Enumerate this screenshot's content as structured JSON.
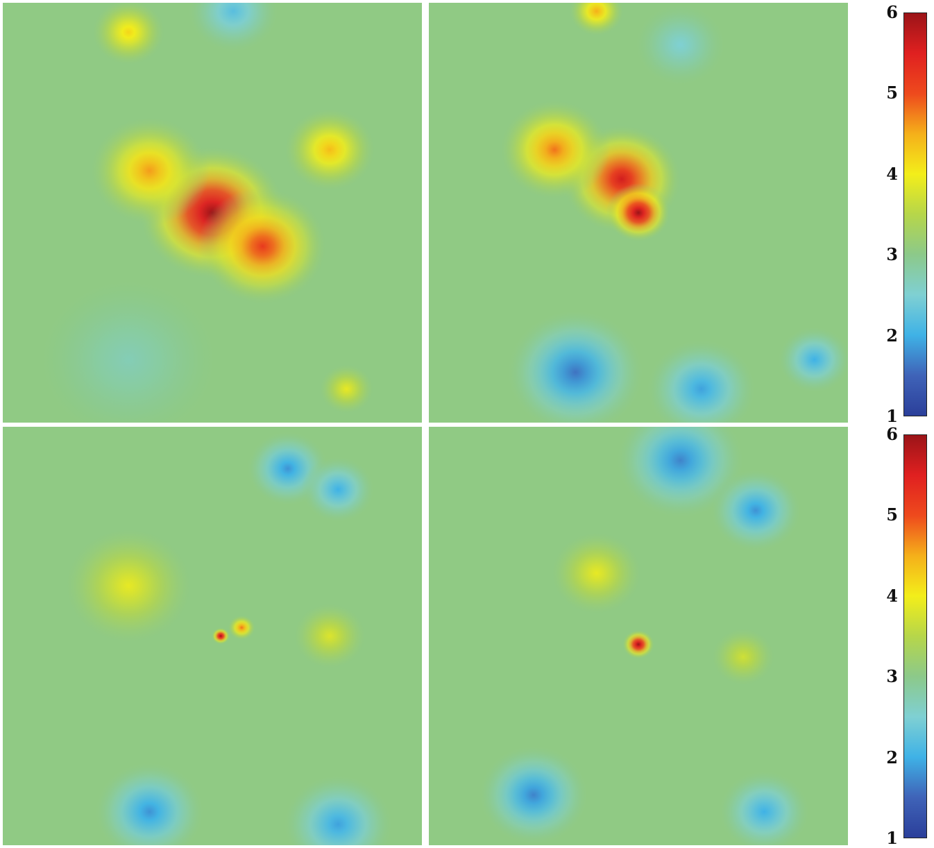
{
  "chart_data": [
    {
      "type": "heatmap",
      "colorbar": {
        "min": 1,
        "max": 6,
        "ticks": [
          "1",
          "2",
          "3",
          "4",
          "5",
          "6"
        ]
      },
      "colors": {
        "scale": [
          "#2b3f9a",
          "#3f63b8",
          "#3fb2e6",
          "#7fd0d3",
          "#8cc98a",
          "#b6d64a",
          "#f3ee1a",
          "#f5b01a",
          "#ee4a1d",
          "#e02020",
          "#9b1418"
        ]
      },
      "panels": [
        {
          "position": "top-left",
          "features": [
            {
              "kind": "peak",
              "x": 0.5,
              "y": 0.5,
              "value": 6.0,
              "spread": 0.16
            },
            {
              "kind": "peak",
              "x": 0.62,
              "y": 0.58,
              "value": 5.2,
              "spread": 0.14
            },
            {
              "kind": "peak",
              "x": 0.35,
              "y": 0.4,
              "value": 4.6,
              "spread": 0.13
            },
            {
              "kind": "peak",
              "x": 0.78,
              "y": 0.35,
              "value": 4.4,
              "spread": 0.1
            },
            {
              "kind": "peak",
              "x": 0.3,
              "y": 0.07,
              "value": 4.2,
              "spread": 0.08
            },
            {
              "kind": "peak",
              "x": 0.82,
              "y": 0.92,
              "value": 3.9,
              "spread": 0.06
            },
            {
              "kind": "valley",
              "x": 0.55,
              "y": 0.02,
              "value": 2.2,
              "spread": 0.1
            },
            {
              "kind": "valley",
              "x": 0.3,
              "y": 0.85,
              "value": 2.7,
              "spread": 0.2
            }
          ]
        },
        {
          "position": "top-right",
          "features": [
            {
              "kind": "peak",
              "x": 0.46,
              "y": 0.42,
              "value": 5.6,
              "spread": 0.13
            },
            {
              "kind": "peak",
              "x": 0.5,
              "y": 0.5,
              "value": 6.0,
              "spread": 0.07
            },
            {
              "kind": "peak",
              "x": 0.3,
              "y": 0.35,
              "value": 4.8,
              "spread": 0.12
            },
            {
              "kind": "peak",
              "x": 0.4,
              "y": 0.02,
              "value": 4.5,
              "spread": 0.06
            },
            {
              "kind": "valley",
              "x": 0.35,
              "y": 0.88,
              "value": 1.6,
              "spread": 0.15
            },
            {
              "kind": "valley",
              "x": 0.65,
              "y": 0.92,
              "value": 1.9,
              "spread": 0.12
            },
            {
              "kind": "valley",
              "x": 0.92,
              "y": 0.85,
              "value": 2.0,
              "spread": 0.08
            },
            {
              "kind": "valley",
              "x": 0.6,
              "y": 0.1,
              "value": 2.5,
              "spread": 0.1
            }
          ]
        },
        {
          "position": "bottom-left",
          "features": [
            {
              "kind": "peak",
              "x": 0.52,
              "y": 0.5,
              "value": 6.0,
              "spread": 0.02
            },
            {
              "kind": "peak",
              "x": 0.57,
              "y": 0.48,
              "value": 4.8,
              "spread": 0.03
            },
            {
              "kind": "peak",
              "x": 0.3,
              "y": 0.38,
              "value": 3.9,
              "spread": 0.14
            },
            {
              "kind": "peak",
              "x": 0.78,
              "y": 0.5,
              "value": 3.8,
              "spread": 0.08
            },
            {
              "kind": "valley",
              "x": 0.68,
              "y": 0.1,
              "value": 1.8,
              "spread": 0.09
            },
            {
              "kind": "valley",
              "x": 0.8,
              "y": 0.15,
              "value": 2.0,
              "spread": 0.08
            },
            {
              "kind": "valley",
              "x": 0.35,
              "y": 0.92,
              "value": 1.8,
              "spread": 0.12
            },
            {
              "kind": "valley",
              "x": 0.8,
              "y": 0.95,
              "value": 1.9,
              "spread": 0.12
            }
          ]
        },
        {
          "position": "bottom-right",
          "features": [
            {
              "kind": "peak",
              "x": 0.5,
              "y": 0.52,
              "value": 6.0,
              "spread": 0.035
            },
            {
              "kind": "peak",
              "x": 0.4,
              "y": 0.35,
              "value": 3.9,
              "spread": 0.1
            },
            {
              "kind": "peak",
              "x": 0.75,
              "y": 0.55,
              "value": 3.7,
              "spread": 0.07
            },
            {
              "kind": "valley",
              "x": 0.6,
              "y": 0.08,
              "value": 1.7,
              "spread": 0.14
            },
            {
              "kind": "valley",
              "x": 0.78,
              "y": 0.2,
              "value": 1.8,
              "spread": 0.1
            },
            {
              "kind": "valley",
              "x": 0.25,
              "y": 0.88,
              "value": 1.7,
              "spread": 0.12
            },
            {
              "kind": "valley",
              "x": 0.8,
              "y": 0.92,
              "value": 2.0,
              "spread": 0.1
            }
          ]
        }
      ]
    }
  ]
}
